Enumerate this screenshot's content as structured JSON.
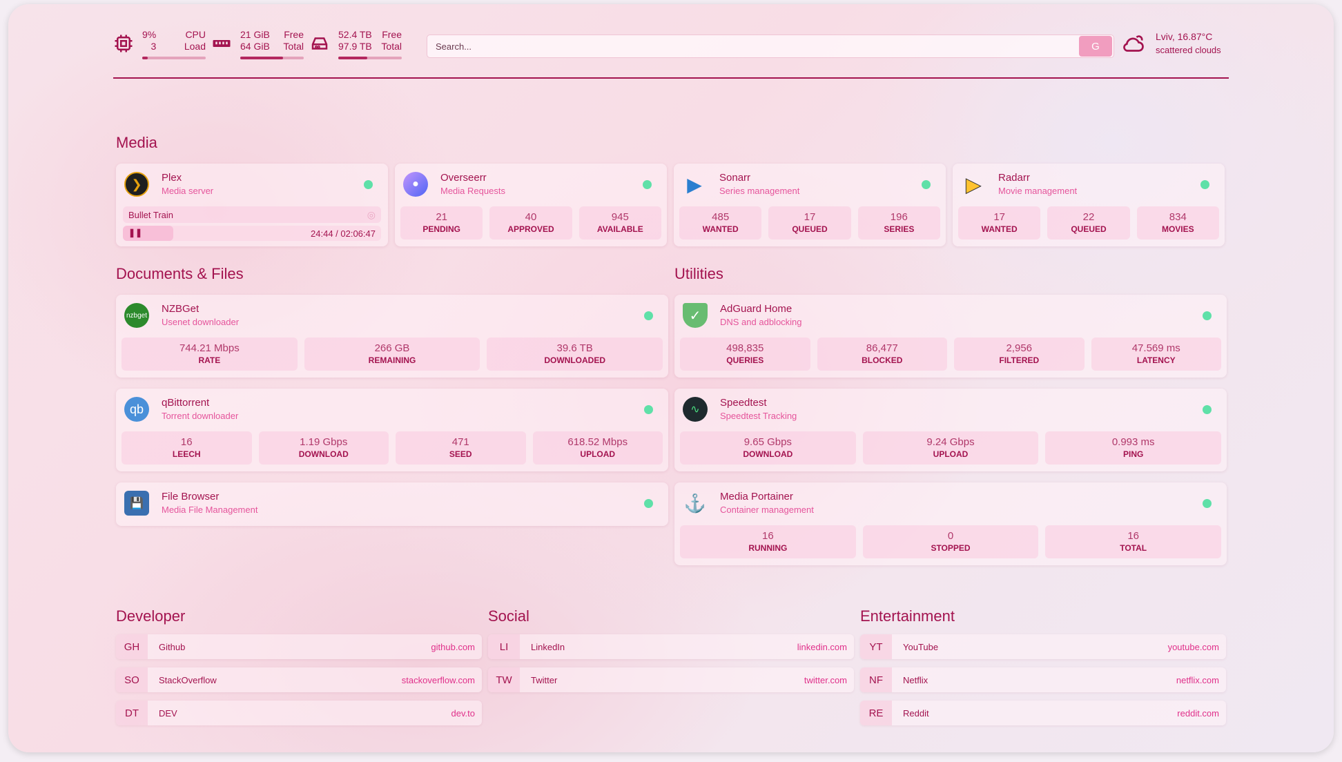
{
  "header": {
    "cpu": {
      "icon": "cpu-icon",
      "value": "9%",
      "value2": "3",
      "label": "CPU",
      "label2": "Load",
      "fill": 0.09
    },
    "memory": {
      "icon": "memory-icon",
      "value": "21 GiB",
      "value2": "64 GiB",
      "label": "Free",
      "label2": "Total",
      "fill": 0.67
    },
    "disk": {
      "icon": "disk-icon",
      "value": "52.4 TB",
      "value2": "97.9 TB",
      "label": "Free",
      "label2": "Total",
      "fill": 0.46
    },
    "search": {
      "placeholder": "Search...",
      "button": "G"
    },
    "weather": {
      "icon": "cloud-sun-icon",
      "location": "Lviv, 16.87°C",
      "desc": "scattered clouds"
    }
  },
  "colors": {
    "text": "#a3134f",
    "subtitle": "#e5549b",
    "status_ok": "#5fe0a8",
    "accent": "#f19dbf"
  },
  "sections": {
    "media": "Media",
    "docs": "Documents & Files",
    "utilities": "Utilities",
    "developer": "Developer",
    "social": "Social",
    "entertainment": "Entertainment"
  },
  "media": [
    {
      "name": "Plex",
      "desc": "Media server",
      "icon": "plex-icon",
      "now_playing": {
        "title": "Bullet Train",
        "time": "24:44 / 02:06:47",
        "progress": 0.195
      }
    },
    {
      "name": "Overseerr",
      "desc": "Media Requests",
      "icon": "overseerr-icon",
      "stats": [
        {
          "v": "21",
          "l": "PENDING"
        },
        {
          "v": "40",
          "l": "APPROVED"
        },
        {
          "v": "945",
          "l": "AVAILABLE"
        }
      ]
    },
    {
      "name": "Sonarr",
      "desc": "Series management",
      "icon": "sonarr-icon",
      "stats": [
        {
          "v": "485",
          "l": "WANTED"
        },
        {
          "v": "17",
          "l": "QUEUED"
        },
        {
          "v": "196",
          "l": "SERIES"
        }
      ]
    },
    {
      "name": "Radarr",
      "desc": "Movie management",
      "icon": "radarr-icon",
      "stats": [
        {
          "v": "17",
          "l": "WANTED"
        },
        {
          "v": "22",
          "l": "QUEUED"
        },
        {
          "v": "834",
          "l": "MOVIES"
        }
      ]
    }
  ],
  "docs": [
    {
      "name": "NZBGet",
      "desc": "Usenet downloader",
      "icon": "nzbget-icon",
      "logo_text": "nzbget",
      "stats": [
        {
          "v": "744.21 Mbps",
          "l": "RATE"
        },
        {
          "v": "266 GB",
          "l": "REMAINING"
        },
        {
          "v": "39.6 TB",
          "l": "DOWNLOADED"
        }
      ]
    },
    {
      "name": "qBittorrent",
      "desc": "Torrent downloader",
      "icon": "qbittorrent-icon",
      "logo_text": "qb",
      "stats": [
        {
          "v": "16",
          "l": "LEECH"
        },
        {
          "v": "1.19 Gbps",
          "l": "DOWNLOAD"
        },
        {
          "v": "471",
          "l": "SEED"
        },
        {
          "v": "618.52 Mbps",
          "l": "UPLOAD"
        }
      ]
    },
    {
      "name": "File Browser",
      "desc": "Media File Management",
      "icon": "file-browser-icon"
    }
  ],
  "utilities": [
    {
      "name": "AdGuard Home",
      "desc": "DNS and adblocking",
      "icon": "adguard-shield-icon",
      "stats": [
        {
          "v": "498,835",
          "l": "QUERIES"
        },
        {
          "v": "86,477",
          "l": "BLOCKED"
        },
        {
          "v": "2,956",
          "l": "FILTERED"
        },
        {
          "v": "47.569 ms",
          "l": "LATENCY"
        }
      ]
    },
    {
      "name": "Speedtest",
      "desc": "Speedtest Tracking",
      "icon": "speedtest-icon",
      "stats": [
        {
          "v": "9.65 Gbps",
          "l": "DOWNLOAD"
        },
        {
          "v": "9.24 Gbps",
          "l": "UPLOAD"
        },
        {
          "v": "0.993 ms",
          "l": "PING"
        }
      ]
    },
    {
      "name": "Media Portainer",
      "desc": "Container management",
      "icon": "portainer-icon",
      "stats": [
        {
          "v": "16",
          "l": "RUNNING"
        },
        {
          "v": "0",
          "l": "STOPPED"
        },
        {
          "v": "16",
          "l": "TOTAL"
        }
      ]
    }
  ],
  "bookmarks": {
    "developer": [
      {
        "abbr": "GH",
        "name": "Github",
        "url": "github.com"
      },
      {
        "abbr": "SO",
        "name": "StackOverflow",
        "url": "stackoverflow.com"
      },
      {
        "abbr": "DT",
        "name": "DEV",
        "url": "dev.to"
      }
    ],
    "social": [
      {
        "abbr": "LI",
        "name": "LinkedIn",
        "url": "linkedin.com"
      },
      {
        "abbr": "TW",
        "name": "Twitter",
        "url": "twitter.com"
      }
    ],
    "entertainment": [
      {
        "abbr": "YT",
        "name": "YouTube",
        "url": "youtube.com"
      },
      {
        "abbr": "NF",
        "name": "Netflix",
        "url": "netflix.com"
      },
      {
        "abbr": "RE",
        "name": "Reddit",
        "url": "reddit.com"
      }
    ]
  }
}
